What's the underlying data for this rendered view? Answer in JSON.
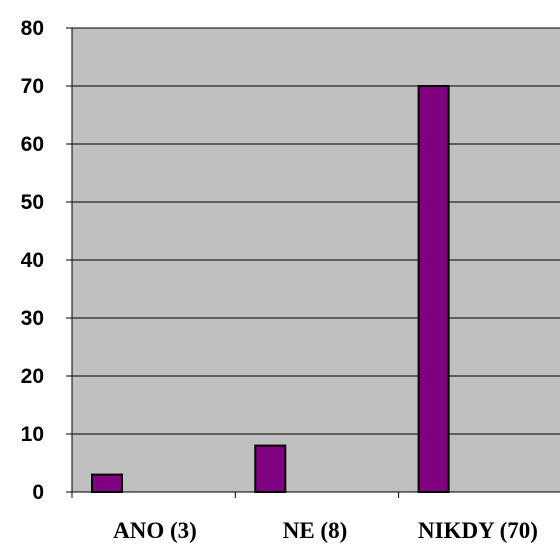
{
  "chart_data": {
    "type": "bar",
    "categories": [
      "ANO (3)",
      "NE (8)",
      "NIKDY (70)"
    ],
    "values": [
      3,
      8,
      70
    ],
    "title": "",
    "xlabel": "",
    "ylabel": "",
    "ylim": [
      0,
      80
    ],
    "yticks": [
      0,
      10,
      20,
      30,
      40,
      50,
      60,
      70,
      80
    ],
    "ytick_labels": [
      "0",
      "10",
      "20",
      "30",
      "40",
      "50",
      "60",
      "70",
      "80"
    ],
    "grid": true,
    "legend": "none",
    "colors": {
      "bar": "#800080",
      "bar_edge": "#000000",
      "plot_background": "#c0c0c0",
      "grid": "#000000"
    }
  }
}
